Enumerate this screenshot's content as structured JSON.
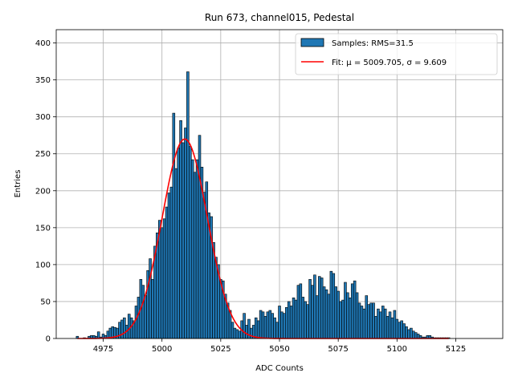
{
  "chart_data": {
    "type": "bar",
    "title": "Run 673, channel015, Pedestal",
    "xlabel": "ADC Counts",
    "ylabel": "Entries",
    "xlim": [
      4955,
      5145
    ],
    "ylim": [
      0,
      418
    ],
    "xticks": [
      4975,
      5000,
      5025,
      5050,
      5075,
      5100,
      5125
    ],
    "yticks": [
      0,
      50,
      100,
      150,
      200,
      250,
      300,
      350,
      400
    ],
    "grid": true,
    "legend_position": "top-right",
    "colors": {
      "bars": "#1f77b4",
      "bar_edge": "#000000",
      "fit": "#ff0000"
    },
    "bin_width": 1,
    "bins": [
      [
        4964,
        3
      ],
      [
        4967,
        1
      ],
      [
        4969,
        3
      ],
      [
        4970,
        4
      ],
      [
        4971,
        4
      ],
      [
        4972,
        3
      ],
      [
        4973,
        9
      ],
      [
        4974,
        2
      ],
      [
        4975,
        6
      ],
      [
        4976,
        4
      ],
      [
        4977,
        10
      ],
      [
        4978,
        14
      ],
      [
        4979,
        16
      ],
      [
        4980,
        15
      ],
      [
        4981,
        14
      ],
      [
        4982,
        22
      ],
      [
        4983,
        25
      ],
      [
        4984,
        28
      ],
      [
        4985,
        18
      ],
      [
        4986,
        33
      ],
      [
        4987,
        28
      ],
      [
        4988,
        24
      ],
      [
        4989,
        44
      ],
      [
        4990,
        56
      ],
      [
        4991,
        80
      ],
      [
        4992,
        72
      ],
      [
        4993,
        58
      ],
      [
        4994,
        92
      ],
      [
        4995,
        108
      ],
      [
        4996,
        80
      ],
      [
        4997,
        125
      ],
      [
        4998,
        143
      ],
      [
        4999,
        160
      ],
      [
        5000,
        150
      ],
      [
        5001,
        162
      ],
      [
        5002,
        178
      ],
      [
        5003,
        197
      ],
      [
        5004,
        205
      ],
      [
        5005,
        305
      ],
      [
        5006,
        230
      ],
      [
        5007,
        258
      ],
      [
        5008,
        295
      ],
      [
        5009,
        265
      ],
      [
        5010,
        285
      ],
      [
        5011,
        361
      ],
      [
        5012,
        260
      ],
      [
        5013,
        242
      ],
      [
        5014,
        225
      ],
      [
        5015,
        242
      ],
      [
        5016,
        275
      ],
      [
        5017,
        232
      ],
      [
        5018,
        198
      ],
      [
        5019,
        212
      ],
      [
        5020,
        170
      ],
      [
        5021,
        165
      ],
      [
        5022,
        130
      ],
      [
        5023,
        110
      ],
      [
        5024,
        100
      ],
      [
        5025,
        80
      ],
      [
        5026,
        78
      ],
      [
        5027,
        60
      ],
      [
        5028,
        48
      ],
      [
        5029,
        38
      ],
      [
        5030,
        22
      ],
      [
        5031,
        14
      ],
      [
        5032,
        12
      ],
      [
        5033,
        10
      ],
      [
        5034,
        24
      ],
      [
        5035,
        34
      ],
      [
        5036,
        18
      ],
      [
        5037,
        26
      ],
      [
        5038,
        14
      ],
      [
        5039,
        18
      ],
      [
        5040,
        28
      ],
      [
        5041,
        24
      ],
      [
        5042,
        38
      ],
      [
        5043,
        36
      ],
      [
        5044,
        30
      ],
      [
        5045,
        36
      ],
      [
        5046,
        38
      ],
      [
        5047,
        34
      ],
      [
        5048,
        28
      ],
      [
        5049,
        22
      ],
      [
        5050,
        44
      ],
      [
        5051,
        36
      ],
      [
        5052,
        34
      ],
      [
        5053,
        42
      ],
      [
        5054,
        50
      ],
      [
        5055,
        44
      ],
      [
        5056,
        55
      ],
      [
        5057,
        52
      ],
      [
        5058,
        72
      ],
      [
        5059,
        74
      ],
      [
        5060,
        56
      ],
      [
        5061,
        50
      ],
      [
        5062,
        46
      ],
      [
        5063,
        80
      ],
      [
        5064,
        72
      ],
      [
        5065,
        86
      ],
      [
        5066,
        58
      ],
      [
        5067,
        84
      ],
      [
        5068,
        82
      ],
      [
        5069,
        70
      ],
      [
        5070,
        66
      ],
      [
        5071,
        60
      ],
      [
        5072,
        91
      ],
      [
        5073,
        88
      ],
      [
        5074,
        70
      ],
      [
        5075,
        64
      ],
      [
        5076,
        50
      ],
      [
        5077,
        52
      ],
      [
        5078,
        76
      ],
      [
        5079,
        62
      ],
      [
        5080,
        55
      ],
      [
        5081,
        74
      ],
      [
        5082,
        78
      ],
      [
        5083,
        62
      ],
      [
        5084,
        48
      ],
      [
        5085,
        44
      ],
      [
        5086,
        40
      ],
      [
        5087,
        58
      ],
      [
        5088,
        46
      ],
      [
        5089,
        48
      ],
      [
        5090,
        48
      ],
      [
        5091,
        30
      ],
      [
        5092,
        40
      ],
      [
        5093,
        36
      ],
      [
        5094,
        44
      ],
      [
        5095,
        40
      ],
      [
        5096,
        30
      ],
      [
        5097,
        36
      ],
      [
        5098,
        28
      ],
      [
        5099,
        38
      ],
      [
        5100,
        26
      ],
      [
        5101,
        22
      ],
      [
        5102,
        24
      ],
      [
        5103,
        20
      ],
      [
        5104,
        16
      ],
      [
        5105,
        12
      ],
      [
        5106,
        14
      ],
      [
        5107,
        10
      ],
      [
        5108,
        8
      ],
      [
        5109,
        6
      ],
      [
        5110,
        4
      ],
      [
        5111,
        2
      ],
      [
        5112,
        2
      ],
      [
        5113,
        4
      ],
      [
        5114,
        4
      ],
      [
        5115,
        2
      ],
      [
        5116,
        1
      ],
      [
        5117,
        1
      ],
      [
        5118,
        1
      ],
      [
        5119,
        1
      ],
      [
        5120,
        1
      ],
      [
        5121,
        1
      ],
      [
        5122,
        1
      ]
    ],
    "fit": {
      "mu": 5009.705,
      "sigma": 9.609,
      "amplitude": 270,
      "x_range": [
        4964,
        5122
      ]
    },
    "legend": [
      {
        "kind": "samples",
        "label": "Samples: RMS=31.5"
      },
      {
        "kind": "fit",
        "label": "Fit: μ = 5009.705, σ = 9.609"
      }
    ]
  }
}
